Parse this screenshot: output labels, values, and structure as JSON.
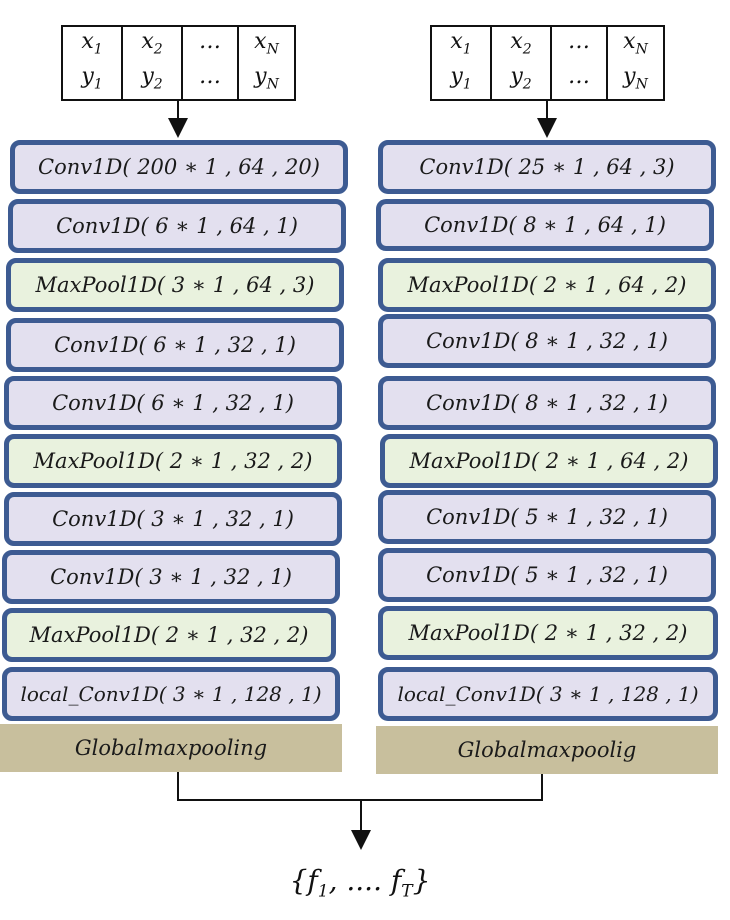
{
  "left": {
    "inputs": [
      {
        "x": "x",
        "xs": "1",
        "y": "y",
        "ys": "1"
      },
      {
        "x": "x",
        "xs": "2",
        "y": "y",
        "ys": "2"
      },
      {
        "x": "…",
        "xs": "",
        "y": "…",
        "ys": ""
      },
      {
        "x": "x",
        "xs": "N",
        "y": "y",
        "ys": "N"
      }
    ],
    "layers": [
      {
        "label": "Conv1D( 200 ∗ 1 , 64 , 20)",
        "kind": "conv"
      },
      {
        "label": "Conv1D( 6 ∗ 1 , 64 , 1)",
        "kind": "conv"
      },
      {
        "label": "MaxPool1D( 3 ∗ 1 , 64 , 3)",
        "kind": "pool"
      },
      {
        "label": "Conv1D( 6 ∗ 1 , 32 , 1)",
        "kind": "conv"
      },
      {
        "label": "Conv1D( 6 ∗ 1 , 32 , 1)",
        "kind": "conv"
      },
      {
        "label": "MaxPool1D( 2 ∗ 1 , 32 , 2)",
        "kind": "pool"
      },
      {
        "label": "Conv1D( 3 ∗ 1 , 32 , 1)",
        "kind": "conv"
      },
      {
        "label": "Conv1D( 3 ∗ 1 , 32 , 1)",
        "kind": "conv"
      },
      {
        "label": "MaxPool1D( 2 ∗ 1 , 32 , 2)",
        "kind": "pool"
      },
      {
        "label": "local_Conv1D( 3 ∗ 1 , 128 , 1)",
        "kind": "conv"
      }
    ],
    "global_pool": "Globalmaxpooling"
  },
  "right": {
    "inputs": [
      {
        "x": "x",
        "xs": "1",
        "y": "y",
        "ys": "1"
      },
      {
        "x": "x",
        "xs": "2",
        "y": "y",
        "ys": "2"
      },
      {
        "x": "…",
        "xs": "",
        "y": "…",
        "ys": ""
      },
      {
        "x": "x",
        "xs": "N",
        "y": "y",
        "ys": "N"
      }
    ],
    "layers": [
      {
        "label": "Conv1D( 25 ∗ 1 , 64 , 3)",
        "kind": "conv"
      },
      {
        "label": "Conv1D( 8 ∗ 1 , 64 , 1)",
        "kind": "conv"
      },
      {
        "label": "MaxPool1D( 2 ∗ 1 , 64 , 2)",
        "kind": "pool"
      },
      {
        "label": "Conv1D( 8 ∗ 1 , 32 , 1)",
        "kind": "conv"
      },
      {
        "label": "Conv1D( 8 ∗ 1 , 32 , 1)",
        "kind": "conv"
      },
      {
        "label": "MaxPool1D( 2 ∗ 1 , 64 , 2)",
        "kind": "pool"
      },
      {
        "label": "Conv1D( 5 ∗ 1 , 32 , 1)",
        "kind": "conv"
      },
      {
        "label": "Conv1D( 5 ∗ 1 , 32 , 1)",
        "kind": "conv"
      },
      {
        "label": "MaxPool1D( 2 ∗ 1 , 32 , 2)",
        "kind": "pool"
      },
      {
        "label": "local_Conv1D( 3 ∗ 1 , 128 , 1)",
        "kind": "conv"
      }
    ],
    "global_pool": "Globalmaxpoolig"
  },
  "output": {
    "open": "{f",
    "s1": "1",
    "mid": ", .... f",
    "s2": "T",
    "close": "}"
  },
  "colors": {
    "border": "#3d5b92",
    "conv_fill": "#e3e0ef",
    "pool_fill": "#e9f2de",
    "global_fill": "#c8bf9d"
  }
}
